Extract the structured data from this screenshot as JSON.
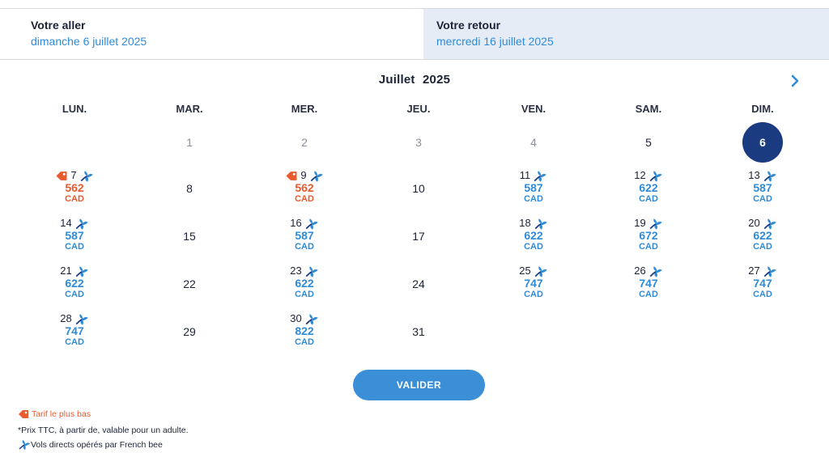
{
  "header": {
    "outbound_label": "Votre aller",
    "outbound_date": "dimanche 6 juillet 2025",
    "return_label": "Votre retour",
    "return_date": "mercredi 16 juillet 2025"
  },
  "calendar": {
    "month": "Juillet",
    "year": "2025",
    "weekdays": [
      "LUN.",
      "MAR.",
      "MER.",
      "JEU.",
      "VEN.",
      "SAM.",
      "DIM."
    ],
    "selected_day": "6",
    "days": [
      {
        "day": "1",
        "col": 1,
        "row": 0,
        "past": true
      },
      {
        "day": "2",
        "col": 2,
        "row": 0,
        "past": true
      },
      {
        "day": "3",
        "col": 3,
        "row": 0,
        "past": true
      },
      {
        "day": "4",
        "col": 4,
        "row": 0,
        "past": true
      },
      {
        "day": "5",
        "col": 5,
        "row": 0
      },
      {
        "day": "7",
        "col": 0,
        "row": 1,
        "price": "562",
        "currency": "CAD",
        "lowest": true,
        "direct": true
      },
      {
        "day": "8",
        "col": 1,
        "row": 1
      },
      {
        "day": "9",
        "col": 2,
        "row": 1,
        "price": "562",
        "currency": "CAD",
        "lowest": true,
        "direct": true
      },
      {
        "day": "10",
        "col": 3,
        "row": 1
      },
      {
        "day": "11",
        "col": 4,
        "row": 1,
        "price": "587",
        "currency": "CAD",
        "direct": true
      },
      {
        "day": "12",
        "col": 5,
        "row": 1,
        "price": "622",
        "currency": "CAD",
        "direct": true
      },
      {
        "day": "13",
        "col": 6,
        "row": 1,
        "price": "587",
        "currency": "CAD",
        "direct": true
      },
      {
        "day": "14",
        "col": 0,
        "row": 2,
        "price": "587",
        "currency": "CAD",
        "direct": true
      },
      {
        "day": "15",
        "col": 1,
        "row": 2
      },
      {
        "day": "16",
        "col": 2,
        "row": 2,
        "price": "587",
        "currency": "CAD",
        "direct": true
      },
      {
        "day": "17",
        "col": 3,
        "row": 2
      },
      {
        "day": "18",
        "col": 4,
        "row": 2,
        "price": "622",
        "currency": "CAD",
        "direct": true
      },
      {
        "day": "19",
        "col": 5,
        "row": 2,
        "price": "672",
        "currency": "CAD",
        "direct": true
      },
      {
        "day": "20",
        "col": 6,
        "row": 2,
        "price": "622",
        "currency": "CAD",
        "direct": true
      },
      {
        "day": "21",
        "col": 0,
        "row": 3,
        "price": "622",
        "currency": "CAD",
        "direct": true
      },
      {
        "day": "22",
        "col": 1,
        "row": 3
      },
      {
        "day": "23",
        "col": 2,
        "row": 3,
        "price": "622",
        "currency": "CAD",
        "direct": true
      },
      {
        "day": "24",
        "col": 3,
        "row": 3
      },
      {
        "day": "25",
        "col": 4,
        "row": 3,
        "price": "747",
        "currency": "CAD",
        "direct": true
      },
      {
        "day": "26",
        "col": 5,
        "row": 3,
        "price": "747",
        "currency": "CAD",
        "direct": true
      },
      {
        "day": "27",
        "col": 6,
        "row": 3,
        "price": "747",
        "currency": "CAD",
        "direct": true
      },
      {
        "day": "28",
        "col": 0,
        "row": 4,
        "price": "747",
        "currency": "CAD",
        "direct": true
      },
      {
        "day": "29",
        "col": 1,
        "row": 4
      },
      {
        "day": "30",
        "col": 2,
        "row": 4,
        "price": "822",
        "currency": "CAD",
        "direct": true
      },
      {
        "day": "31",
        "col": 3,
        "row": 4
      }
    ]
  },
  "actions": {
    "validate_label": "VALIDER"
  },
  "legend": {
    "lowest_fare": "Tarif le plus bas",
    "price_note": "*Prix TTC, à partir de, valable pour un adulte.",
    "direct_flights": "Vols directs opérés par French bee"
  },
  "colors": {
    "price_blue": "#2f8bd8",
    "lowest_orange": "#ea5a2f",
    "selected_navy": "#1a3b80",
    "button_blue": "#3a8fd6"
  },
  "icons": {
    "direct": "french-bee-icon",
    "lowest": "price-tag-icon",
    "next": "chevron-right-icon"
  }
}
